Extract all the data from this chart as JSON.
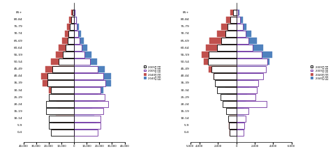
{
  "age_groups": [
    "0-4",
    "5-9",
    "10-14",
    "15-19",
    "20-24",
    "25-29",
    "30-34",
    "35-39",
    "40-44",
    "45-49",
    "50-54",
    "55-59",
    "60-64",
    "65-69",
    "70-74",
    "75-79",
    "80-84",
    "85+"
  ],
  "cheonan": {
    "f2005": [
      18000,
      20000,
      20000,
      22000,
      22000,
      20000,
      18000,
      21000,
      21000,
      17000,
      12000,
      9000,
      6800,
      5200,
      4500,
      3500,
      2200,
      1200
    ],
    "m2005": [
      19000,
      21000,
      21000,
      23000,
      27000,
      24000,
      21000,
      25000,
      23000,
      18500,
      12500,
      8500,
      6200,
      4500,
      3200,
      2200,
      1400,
      600
    ],
    "f2040": [
      17000,
      16500,
      14500,
      12500,
      14000,
      16500,
      20000,
      25000,
      26000,
      22500,
      18500,
      14500,
      12000,
      9500,
      7000,
      5500,
      3800,
      2500
    ],
    "m2040": [
      18000,
      17500,
      16000,
      14500,
      18500,
      18500,
      23000,
      29000,
      29000,
      24000,
      18000,
      13500,
      10500,
      7800,
      5500,
      3800,
      2200,
      1100
    ],
    "xlim": [
      -40000,
      40000
    ],
    "xticks": [
      -40000,
      -30000,
      -20000,
      -10000,
      0,
      10000,
      20000,
      30000,
      40000
    ],
    "xtick_labels": [
      "40,000",
      "30,000",
      "20,000",
      "10,000",
      "0",
      "10,000",
      "20,000",
      "30,000",
      "40,000"
    ]
  },
  "gongju": {
    "f2005": [
      700,
      800,
      900,
      1100,
      1500,
      1700,
      2100,
      2300,
      2500,
      2700,
      3100,
      3000,
      2100,
      1600,
      1200,
      950,
      650,
      350
    ],
    "m2005": [
      800,
      900,
      1000,
      1300,
      3300,
      2100,
      2200,
      2400,
      2900,
      3200,
      3400,
      2800,
      1800,
      1300,
      1000,
      750,
      450,
      220
    ],
    "f2040": [
      700,
      800,
      750,
      700,
      900,
      1000,
      1200,
      1800,
      2500,
      3000,
      3500,
      3800,
      3300,
      2900,
      2100,
      1600,
      1100,
      650
    ],
    "m2040": [
      800,
      900,
      850,
      800,
      1000,
      1150,
      1400,
      1900,
      2700,
      3200,
      3600,
      3900,
      2900,
      2200,
      1600,
      1100,
      700,
      350
    ],
    "xlim": [
      -5000,
      6000
    ],
    "xticks": [
      -5000,
      -4000,
      -2000,
      0,
      2000,
      4000,
      6000
    ],
    "xtick_labels": [
      "5,000",
      "4,000",
      "2,000",
      "0",
      "2,000",
      "4,000",
      "6,000"
    ]
  },
  "colors": {
    "f2005_fill": "white",
    "f2005_edge": "#000000",
    "m2005_fill": "white",
    "m2005_edge": "#7030a0",
    "f2040_fill": "#c0504d",
    "f2040_edge": "#c0504d",
    "m2040_fill": "#4f81bd",
    "m2040_edge": "#4f81bd"
  },
  "legend_labels": [
    "2005년 여자",
    "2005년 남자",
    "2040년 여자",
    "2040년 남자"
  ]
}
